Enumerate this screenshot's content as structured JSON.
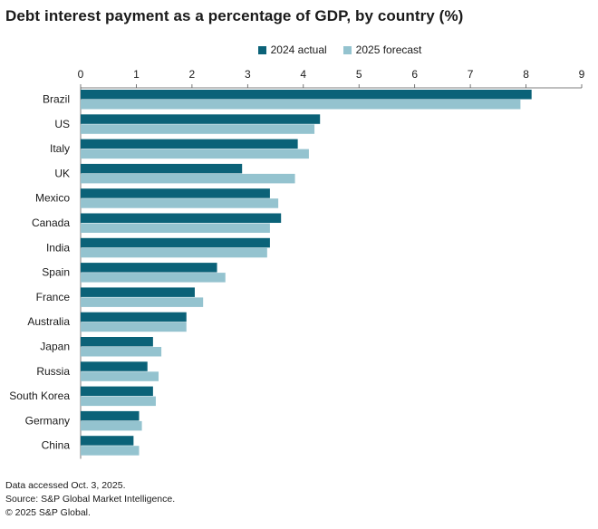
{
  "chart_data": {
    "type": "bar",
    "orientation": "horizontal",
    "title": "Debt interest payment as a percentage of GDP, by country (%)",
    "categories": [
      "Brazil",
      "US",
      "Italy",
      "UK",
      "Mexico",
      "Canada",
      "India",
      "Spain",
      "France",
      "Australia",
      "Japan",
      "Russia",
      "South Korea",
      "Germany",
      "China"
    ],
    "series": [
      {
        "name": "2024 actual",
        "color": "#0b6278",
        "values": [
          8.1,
          4.3,
          3.9,
          2.9,
          3.4,
          3.6,
          3.4,
          2.45,
          2.05,
          1.9,
          1.3,
          1.2,
          1.3,
          1.05,
          0.95
        ]
      },
      {
        "name": "2025 forecast",
        "color": "#94c3cf",
        "values": [
          7.9,
          4.2,
          4.1,
          3.85,
          3.55,
          3.4,
          3.35,
          2.6,
          2.2,
          1.9,
          1.45,
          1.4,
          1.35,
          1.1,
          1.05
        ]
      }
    ],
    "xlim": [
      0,
      9
    ],
    "xticks": [
      0,
      1,
      2,
      3,
      4,
      5,
      6,
      7,
      8,
      9
    ],
    "xlabel": "",
    "ylabel": "",
    "grid": false,
    "legend": "top-center"
  },
  "footer": {
    "line1": "Data accessed Oct. 3, 2025.",
    "line2": "Source: S&P Global Market Intelligence.",
    "line3": "© 2025 S&P Global."
  }
}
